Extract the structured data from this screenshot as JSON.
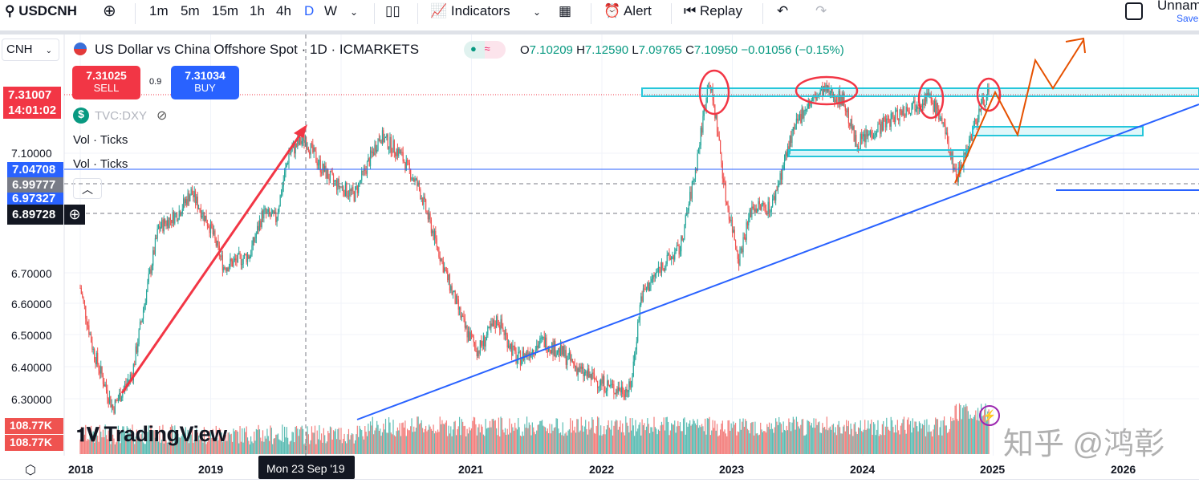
{
  "toolbar": {
    "symbol": "USDCNH",
    "intervals": [
      "1m",
      "5m",
      "15m",
      "1h",
      "4h",
      "D",
      "W"
    ],
    "active_interval": "D",
    "indicators": "Indicators",
    "alert": "Alert",
    "replay": "Replay",
    "layout_name": "Unnam",
    "save": "Save"
  },
  "legend": {
    "currency": "CNH",
    "title": "US Dollar vs China Offshore Spot · 1D · ICMARKETS",
    "open_label": "O",
    "open": "7.10209",
    "high_label": "H",
    "high": "7.12590",
    "low_label": "L",
    "low": "7.09765",
    "close_label": "C",
    "close": "7.10950",
    "change": "−0.01056 (−0.15%)",
    "sell_price": "7.31025",
    "sell": "SELL",
    "spread": "0.9",
    "buy_price": "7.31034",
    "buy": "BUY",
    "compare_symbol": "TVC:DXY",
    "vol1": "Vol · Ticks",
    "vol2": "Vol · Ticks"
  },
  "price_axis": {
    "current_price": "7.31007",
    "countdown": "14:01:02",
    "ticks": [
      "7.10000",
      "6.70000",
      "6.60000",
      "6.50000",
      "6.40000",
      "6.30000"
    ],
    "tag_blue": "7.04708",
    "tag_gray": "6.99777",
    "tag_blue2": "6.97327",
    "crosshair_price": "6.89728",
    "vol_tag1": "108.77K",
    "vol_tag2": "108.77K"
  },
  "time_axis": {
    "labels": [
      "2018",
      "2019",
      "2021",
      "2022",
      "2023",
      "2024",
      "2025",
      "2026"
    ],
    "crosshair_date": "Mon 23 Sep '19"
  },
  "watermark": {
    "logo": "TradingView",
    "zhihu": "知乎 @鸿彰"
  },
  "colors": {
    "up": "#26a69a",
    "down": "#ef5350",
    "blue": "#2962ff",
    "sell": "#f23645"
  },
  "chart_data": {
    "type": "candlestick",
    "symbol": "USDCNH",
    "interval": "1D",
    "price_path": [
      [
        2018.0,
        6.65
      ],
      [
        2018.1,
        6.45
      ],
      [
        2018.25,
        6.27
      ],
      [
        2018.4,
        6.38
      ],
      [
        2018.5,
        6.62
      ],
      [
        2018.6,
        6.85
      ],
      [
        2018.75,
        6.9
      ],
      [
        2018.85,
        6.97
      ],
      [
        2019.0,
        6.85
      ],
      [
        2019.1,
        6.72
      ],
      [
        2019.3,
        6.76
      ],
      [
        2019.4,
        6.9
      ],
      [
        2019.5,
        6.88
      ],
      [
        2019.6,
        7.1
      ],
      [
        2019.72,
        7.15
      ],
      [
        2019.85,
        7.05
      ],
      [
        2019.95,
        7.0
      ],
      [
        2020.1,
        6.96
      ],
      [
        2020.3,
        7.16
      ],
      [
        2020.45,
        7.1
      ],
      [
        2020.6,
        6.98
      ],
      [
        2020.8,
        6.7
      ],
      [
        2020.95,
        6.52
      ],
      [
        2021.05,
        6.45
      ],
      [
        2021.2,
        6.55
      ],
      [
        2021.35,
        6.42
      ],
      [
        2021.55,
        6.48
      ],
      [
        2021.7,
        6.44
      ],
      [
        2021.85,
        6.38
      ],
      [
        2022.1,
        6.33
      ],
      [
        2022.22,
        6.33
      ],
      [
        2022.3,
        6.62
      ],
      [
        2022.45,
        6.72
      ],
      [
        2022.6,
        6.78
      ],
      [
        2022.72,
        7.05
      ],
      [
        2022.82,
        7.35
      ],
      [
        2022.88,
        7.2
      ],
      [
        2022.95,
        6.95
      ],
      [
        2023.05,
        6.75
      ],
      [
        2023.15,
        6.92
      ],
      [
        2023.3,
        6.92
      ],
      [
        2023.45,
        7.15
      ],
      [
        2023.55,
        7.25
      ],
      [
        2023.7,
        7.31
      ],
      [
        2023.85,
        7.28
      ],
      [
        2023.95,
        7.13
      ],
      [
        2024.1,
        7.18
      ],
      [
        2024.3,
        7.24
      ],
      [
        2024.5,
        7.29
      ],
      [
        2024.6,
        7.22
      ],
      [
        2024.72,
        7.02
      ],
      [
        2024.8,
        7.12
      ],
      [
        2024.9,
        7.25
      ],
      [
        2024.97,
        7.31
      ]
    ]
  }
}
